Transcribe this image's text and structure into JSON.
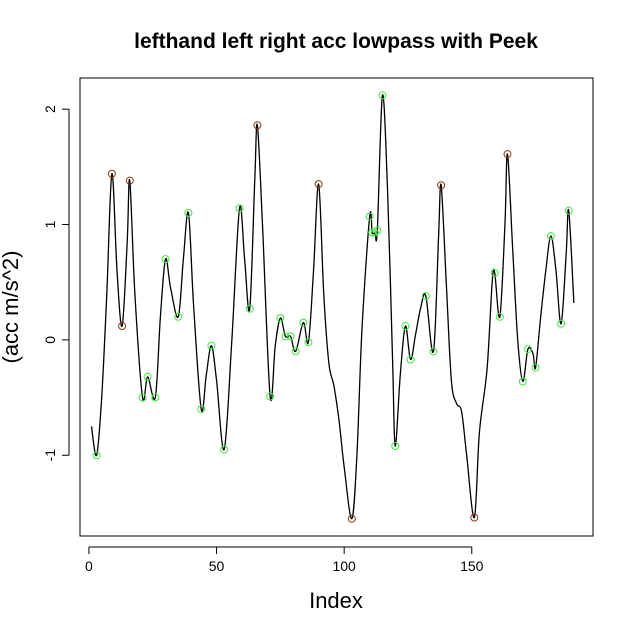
{
  "chart_data": {
    "type": "line",
    "title": "lefthand left right acc lowpass with Peek",
    "xlabel": "Index",
    "ylabel": "(acc m/s^2)",
    "xlim": [
      -3.5,
      197.5
    ],
    "ylim": [
      -1.7,
      2.27
    ],
    "x_ticks": [
      0,
      50,
      100,
      150
    ],
    "y_ticks": [
      -1,
      0,
      1,
      2
    ],
    "grid": false,
    "colors": {
      "line": "#000000",
      "peak_marker": "#8b3a0f",
      "valley_marker": "#3fe83f"
    },
    "series": [
      {
        "values": [
          [
            1,
            -0.75
          ],
          [
            3,
            -1.0
          ],
          [
            5,
            -0.5
          ],
          [
            7,
            0.4
          ],
          [
            9,
            1.44
          ],
          [
            11,
            0.6
          ],
          [
            13,
            0.12
          ],
          [
            15,
            0.85
          ],
          [
            16,
            1.38
          ],
          [
            18,
            0.4
          ],
          [
            21,
            -0.5
          ],
          [
            23,
            -0.32
          ],
          [
            26,
            -0.5
          ],
          [
            28,
            0.2
          ],
          [
            30,
            0.7
          ],
          [
            32,
            0.45
          ],
          [
            35,
            0.2
          ],
          [
            37,
            0.7
          ],
          [
            39,
            1.1
          ],
          [
            41,
            0.3
          ],
          [
            44,
            -0.6
          ],
          [
            46,
            -0.3
          ],
          [
            48,
            -0.05
          ],
          [
            50,
            -0.35
          ],
          [
            53,
            -0.95
          ],
          [
            56,
            0.0
          ],
          [
            59,
            1.14
          ],
          [
            61,
            0.7
          ],
          [
            63,
            0.27
          ],
          [
            65,
            1.4
          ],
          [
            66,
            1.86
          ],
          [
            68,
            1.0
          ],
          [
            71,
            -0.49
          ],
          [
            73,
            -0.05
          ],
          [
            75,
            0.19
          ],
          [
            77,
            0.03
          ],
          [
            79,
            0.03
          ],
          [
            81,
            -0.1
          ],
          [
            84,
            0.15
          ],
          [
            86,
            -0.02
          ],
          [
            88,
            0.6
          ],
          [
            90,
            1.35
          ],
          [
            92,
            0.4
          ],
          [
            94,
            -0.2
          ],
          [
            96,
            -0.4
          ],
          [
            98,
            -0.7
          ],
          [
            100,
            -1.1
          ],
          [
            103,
            -1.55
          ],
          [
            105,
            -1.0
          ],
          [
            107,
            0.1
          ],
          [
            110,
            1.07
          ],
          [
            111,
            0.93
          ],
          [
            112,
            0.93
          ],
          [
            113,
            0.95
          ],
          [
            115,
            2.12
          ],
          [
            117,
            1.3
          ],
          [
            119,
            -0.2
          ],
          [
            120,
            -0.92
          ],
          [
            122,
            -0.3
          ],
          [
            124,
            0.12
          ],
          [
            126,
            -0.17
          ],
          [
            128,
            0.05
          ],
          [
            130,
            0.28
          ],
          [
            132,
            0.38
          ],
          [
            135,
            -0.1
          ],
          [
            137,
            0.9
          ],
          [
            138,
            1.34
          ],
          [
            140,
            0.5
          ],
          [
            142,
            -0.35
          ],
          [
            144,
            -0.55
          ],
          [
            146,
            -0.62
          ],
          [
            148,
            -1.0
          ],
          [
            151,
            -1.54
          ],
          [
            153,
            -0.8
          ],
          [
            156,
            -0.25
          ],
          [
            158,
            0.5
          ],
          [
            159,
            0.58
          ],
          [
            161,
            0.2
          ],
          [
            163,
            1.0
          ],
          [
            164,
            1.61
          ],
          [
            166,
            0.8
          ],
          [
            168,
            0.0
          ],
          [
            170,
            -0.36
          ],
          [
            172,
            -0.08
          ],
          [
            174,
            -0.12
          ],
          [
            175,
            -0.24
          ],
          [
            177,
            0.2
          ],
          [
            179,
            0.6
          ],
          [
            181,
            0.9
          ],
          [
            183,
            0.6
          ],
          [
            185,
            0.14
          ],
          [
            187,
            0.75
          ],
          [
            188,
            1.12
          ],
          [
            190,
            0.32
          ]
        ]
      }
    ],
    "peak_markers": [
      [
        9,
        1.44
      ],
      [
        13,
        0.12
      ],
      [
        16,
        1.38
      ],
      [
        66,
        1.86
      ],
      [
        90,
        1.35
      ],
      [
        103,
        -1.55
      ],
      [
        138,
        1.34
      ],
      [
        151,
        -1.54
      ],
      [
        164,
        1.61
      ]
    ],
    "valley_markers": [
      [
        3,
        -1.0
      ],
      [
        21,
        -0.5
      ],
      [
        23,
        -0.32
      ],
      [
        26,
        -0.5
      ],
      [
        30,
        0.7
      ],
      [
        35,
        0.2
      ],
      [
        39,
        1.1
      ],
      [
        44,
        -0.6
      ],
      [
        48,
        -0.05
      ],
      [
        53,
        -0.95
      ],
      [
        59,
        1.14
      ],
      [
        63,
        0.27
      ],
      [
        71,
        -0.49
      ],
      [
        75,
        0.19
      ],
      [
        77,
        0.03
      ],
      [
        79,
        0.03
      ],
      [
        81,
        -0.1
      ],
      [
        84,
        0.15
      ],
      [
        86,
        -0.02
      ],
      [
        110,
        1.07
      ],
      [
        111,
        0.93
      ],
      [
        112,
        0.93
      ],
      [
        113,
        0.95
      ],
      [
        115,
        2.12
      ],
      [
        120,
        -0.92
      ],
      [
        124,
        0.12
      ],
      [
        126,
        -0.17
      ],
      [
        132,
        0.38
      ],
      [
        135,
        -0.1
      ],
      [
        159,
        0.58
      ],
      [
        161,
        0.2
      ],
      [
        170,
        -0.36
      ],
      [
        172,
        -0.08
      ],
      [
        175,
        -0.24
      ],
      [
        181,
        0.9
      ],
      [
        185,
        0.14
      ],
      [
        188,
        1.12
      ]
    ]
  }
}
